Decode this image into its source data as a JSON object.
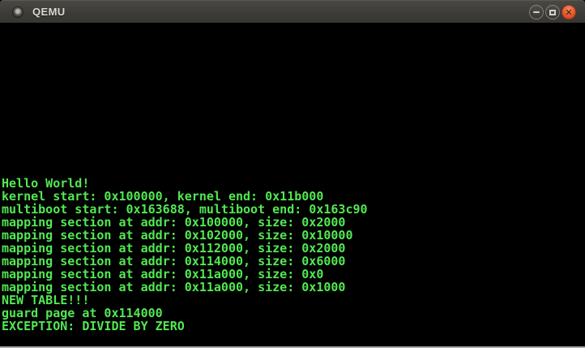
{
  "window": {
    "title": "QEMU",
    "close_button_color": "#e0532a",
    "controls": {
      "minimize_label": "minimize",
      "maximize_label": "maximize",
      "close_label": "close",
      "close_glyph": "✕"
    }
  },
  "terminal": {
    "background": "#000000",
    "foreground": "#52e852",
    "lines": [
      "Hello World!",
      "kernel start: 0x100000, kernel end: 0x11b000",
      "multiboot start: 0x163688, multiboot end: 0x163c90",
      "mapping section at addr: 0x100000, size: 0x2000",
      "mapping section at addr: 0x102000, size: 0x10000",
      "mapping section at addr: 0x112000, size: 0x2000",
      "mapping section at addr: 0x114000, size: 0x6000",
      "mapping section at addr: 0x11a000, size: 0x0",
      "mapping section at addr: 0x11a000, size: 0x1000",
      "NEW TABLE!!!",
      "guard page at 0x114000",
      "EXCEPTION: DIVIDE BY ZERO"
    ]
  }
}
